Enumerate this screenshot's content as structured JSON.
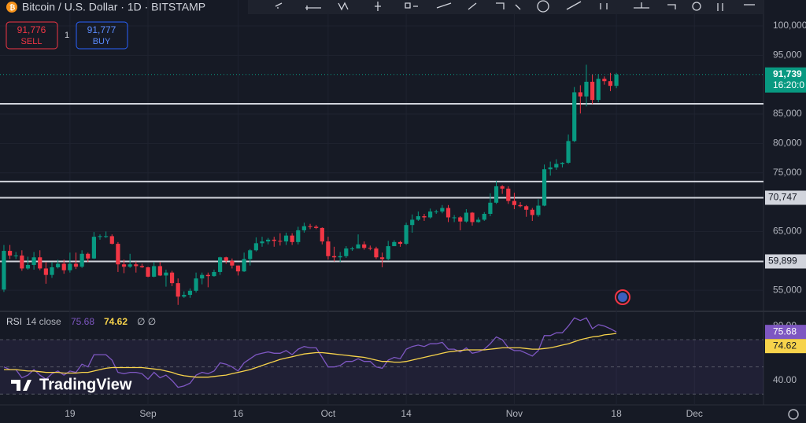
{
  "header": {
    "symbol": "Bitcoin / U.S. Dollar · 1D · BITSTAMP",
    "sell_price": "91,776",
    "sell_label": "SELL",
    "spread": "1",
    "buy_price": "91,777",
    "buy_label": "BUY"
  },
  "watermark": "TradingView",
  "chart_data": [
    {
      "type": "candlestick",
      "up_color": "#089981",
      "down_color": "#f23645",
      "open": [
        55100,
        61700,
        60900,
        60900,
        58700,
        59300,
        60600,
        58700,
        57600,
        58900,
        59500,
        58400,
        59500,
        59000,
        61200,
        60400,
        64100,
        64200,
        64200,
        62900,
        59400,
        59000,
        59400,
        59100,
        58900,
        57300,
        59100,
        57500,
        58000,
        56200,
        53900,
        54200,
        54900,
        57000,
        57600,
        57400,
        58100,
        60600,
        60000,
        59200,
        58200,
        60300,
        61800,
        63000,
        63300,
        63600,
        63400,
        63300,
        64300,
        63200,
        65200,
        65900,
        65800,
        65600,
        63300,
        60800,
        60600,
        60800,
        62100,
        62100,
        62800,
        62200,
        62100,
        60600,
        60300,
        62500,
        63200,
        62900,
        66100,
        67000,
        67600,
        67400,
        68400,
        68400,
        69000,
        67400,
        67400,
        66700,
        68200,
        66600,
        67000,
        68000,
        69900,
        72700,
        72300,
        70200,
        69500,
        69300,
        68700,
        67800,
        69400,
        75600,
        75900,
        76500,
        76700,
        80400,
        88700,
        88000,
        90500,
        87400,
        91000,
        90600,
        89800
      ],
      "high": [
        62700,
        62700,
        61500,
        61800,
        60700,
        61500,
        61800,
        59800,
        59800,
        60200,
        60200,
        61400,
        61400,
        61800,
        61400,
        64900,
        64500,
        65000,
        64500,
        63200,
        60200,
        61200,
        59900,
        59500,
        59000,
        59800,
        59800,
        58500,
        58300,
        57000,
        54800,
        55300,
        58000,
        58000,
        58000,
        58500,
        60700,
        60700,
        60400,
        59200,
        61400,
        62000,
        64000,
        64100,
        63900,
        64100,
        64700,
        64800,
        64700,
        65800,
        66500,
        66300,
        66100,
        65700,
        64100,
        62400,
        61500,
        62500,
        62400,
        64500,
        63300,
        62600,
        62400,
        61400,
        63400,
        63500,
        63400,
        66500,
        67900,
        68400,
        68000,
        68900,
        68700,
        69500,
        69500,
        67800,
        67600,
        68800,
        68300,
        67400,
        68300,
        71500,
        73600,
        72900,
        72700,
        71600,
        70000,
        69500,
        69000,
        70500,
        76400,
        76900,
        77300,
        76800,
        81500,
        89600,
        89900,
        93400,
        91800,
        91800,
        91400,
        92000,
        92000
      ],
      "low": [
        54700,
        60300,
        60300,
        58300,
        58500,
        58500,
        58400,
        56100,
        57100,
        58700,
        57800,
        58000,
        58600,
        58800,
        59800,
        60300,
        63600,
        63900,
        62800,
        58100,
        57900,
        58800,
        58000,
        58800,
        57200,
        57200,
        57400,
        55600,
        55700,
        52500,
        53700,
        53700,
        54600,
        56000,
        55500,
        57300,
        57600,
        59500,
        58700,
        57500,
        58100,
        59200,
        61600,
        62400,
        62800,
        62400,
        62600,
        62700,
        62700,
        62800,
        64800,
        65400,
        65400,
        62800,
        60200,
        59900,
        59800,
        60500,
        61700,
        62100,
        61900,
        61800,
        60300,
        58900,
        60100,
        62500,
        62400,
        62700,
        64800,
        66800,
        66800,
        67200,
        68000,
        68100,
        66600,
        66600,
        65200,
        66500,
        66000,
        66500,
        66800,
        67600,
        69700,
        71400,
        69700,
        68800,
        69100,
        67500,
        66800,
        67500,
        69300,
        74500,
        75500,
        75900,
        76500,
        80200,
        85100,
        86300,
        86700,
        87000,
        90000,
        88900,
        89400
      ],
      "close": [
        61700,
        60900,
        60900,
        58700,
        59300,
        60600,
        58700,
        57600,
        58900,
        59500,
        58400,
        59500,
        59000,
        61200,
        60400,
        64100,
        64200,
        64200,
        62900,
        59400,
        59000,
        59400,
        59100,
        58900,
        57300,
        59100,
        57500,
        58000,
        56200,
        53900,
        54200,
        54900,
        57000,
        57600,
        57400,
        58100,
        60600,
        60000,
        59200,
        58200,
        60300,
        61800,
        63000,
        63300,
        63600,
        63400,
        63300,
        64300,
        63200,
        65200,
        65900,
        65800,
        65600,
        63300,
        60800,
        60600,
        60800,
        62100,
        62100,
        62800,
        62200,
        62100,
        60600,
        60300,
        62500,
        63200,
        62900,
        66100,
        67000,
        67600,
        67400,
        68400,
        68400,
        69000,
        67400,
        67400,
        66700,
        68200,
        66600,
        67000,
        68000,
        69900,
        72700,
        72300,
        70200,
        69500,
        69300,
        68700,
        67800,
        69400,
        75600,
        75900,
        76500,
        76700,
        80400,
        88700,
        88000,
        90500,
        87400,
        91000,
        90600,
        89800,
        91739
      ],
      "xlim": [
        -0.65,
        126.5
      ],
      "xticks": [
        {
          "value": 11,
          "label": "19"
        },
        {
          "value": 24,
          "label": "Sep"
        },
        {
          "value": 39,
          "label": "16"
        },
        {
          "value": 54,
          "label": "Oct"
        },
        {
          "value": 67,
          "label": "14"
        },
        {
          "value": 85,
          "label": "Nov"
        },
        {
          "value": 102,
          "label": "18"
        },
        {
          "value": 115,
          "label": "Dec"
        }
      ],
      "ylim": [
        51530,
        104420
      ],
      "yticks": [
        {
          "value": 55000,
          "label": "55,000"
        },
        {
          "value": 65000,
          "label": "65,000"
        },
        {
          "value": 75000,
          "label": "75,000"
        },
        {
          "value": 80000,
          "label": "80,000"
        },
        {
          "value": 85000,
          "label": "85,000"
        },
        {
          "value": 95000,
          "label": "95,000"
        },
        {
          "value": 100000,
          "label": "100,000"
        }
      ],
      "grid": true,
      "levels": [
        86750,
        73500,
        {
          "value": 70747,
          "label": "70,747"
        },
        {
          "value": 59899,
          "label": "59,899"
        }
      ],
      "level_color": "#d1d4dc",
      "last_price_label": "91,739",
      "countdown": "16:20:0"
    },
    {
      "type": "line",
      "title": "RSI",
      "params": "14 close",
      "legend_extra": "∅ ∅",
      "xlim": [
        -0.65,
        126.5
      ],
      "ylim": [
        22.1,
        90.2
      ],
      "yticks": [
        {
          "value": 40,
          "label": "40.00"
        },
        {
          "value": 80,
          "label": "80.00"
        }
      ],
      "bands": [
        30,
        50,
        70
      ],
      "series": [
        {
          "color": "#7e57c2",
          "values": [
            50,
            48,
            48,
            42,
            44,
            48,
            44,
            41,
            45,
            47,
            44,
            47,
            46,
            52,
            50,
            59,
            59,
            59,
            55,
            46,
            45,
            46,
            46,
            45,
            41,
            46,
            42,
            44,
            40,
            35,
            36,
            38,
            44,
            46,
            45,
            47,
            53,
            52,
            50,
            47,
            53,
            56,
            59,
            60,
            61,
            60,
            60,
            62,
            59,
            63,
            65,
            64,
            64,
            57,
            50,
            50,
            51,
            54,
            54,
            56,
            54,
            54,
            50,
            49,
            55,
            57,
            56,
            63,
            65,
            66,
            65,
            67,
            67,
            68,
            63,
            63,
            61,
            64,
            60,
            61,
            63,
            67,
            72,
            70,
            64,
            62,
            62,
            60,
            58,
            62,
            73,
            73,
            75,
            75,
            80,
            86,
            84,
            86,
            78,
            81,
            80,
            78,
            75.68
          ]
        },
        {
          "color": "#f7d34b",
          "values": [
            48,
            48,
            48,
            47.5,
            47,
            47,
            46.5,
            46,
            46,
            46,
            45.5,
            45.5,
            45.5,
            46,
            46,
            47,
            48,
            49,
            49.5,
            49.5,
            49.5,
            49.5,
            49.5,
            49.5,
            49,
            48.5,
            48,
            47,
            46,
            44.5,
            43.5,
            43,
            42.5,
            42.5,
            42.5,
            43,
            43.5,
            44,
            45,
            46,
            47,
            48,
            49.5,
            51,
            52.5,
            54,
            55.5,
            56.5,
            57.5,
            58.5,
            59.5,
            60,
            60.5,
            60.5,
            60,
            59.5,
            59,
            58.5,
            58,
            57.5,
            57,
            56,
            55,
            54,
            54,
            53.5,
            53.5,
            54,
            55,
            56,
            57,
            58,
            59,
            60,
            61,
            61.5,
            62,
            62.5,
            62.5,
            62.5,
            62.5,
            63,
            63.5,
            64,
            64,
            64,
            64,
            63.5,
            63,
            63,
            63.5,
            64,
            65,
            66,
            67,
            68.5,
            70,
            71,
            72,
            72.5,
            73.5,
            74,
            74.62
          ]
        }
      ]
    }
  ]
}
